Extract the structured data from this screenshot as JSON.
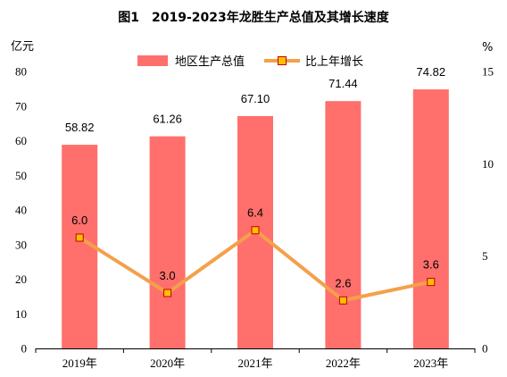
{
  "chart_data": {
    "type": "bar",
    "title": "图1　2019-2023年龙胜生产总值及其增长速度",
    "categories": [
      "2019年",
      "2020年",
      "2021年",
      "2022年",
      "2023年"
    ],
    "series": [
      {
        "name": "地区生产总值",
        "type": "bar",
        "axis": "left",
        "values": [
          58.82,
          61.26,
          67.1,
          71.44,
          74.82
        ],
        "labels": [
          "58.82",
          "61.26",
          "67.10",
          "71.44",
          "74.82"
        ],
        "color": "#ff6f6b"
      },
      {
        "name": "比上年增长",
        "type": "line",
        "axis": "right",
        "values": [
          6.0,
          3.0,
          6.4,
          2.6,
          3.6
        ],
        "labels": [
          "6.0",
          "3.0",
          "6.4",
          "2.6",
          "3.6"
        ],
        "color": "#f4a04a",
        "marker_fill": "#ffc000",
        "marker_stroke": "#c00000"
      }
    ],
    "y_left": {
      "unit": "亿元",
      "min": 0,
      "max": 80,
      "ticks": [
        0,
        10,
        20,
        30,
        40,
        50,
        60,
        70,
        80
      ]
    },
    "y_right": {
      "unit": "%",
      "min": 0,
      "max": 15,
      "ticks": [
        0,
        5,
        10,
        15
      ]
    },
    "grid": false,
    "legend_position": "top-center"
  }
}
